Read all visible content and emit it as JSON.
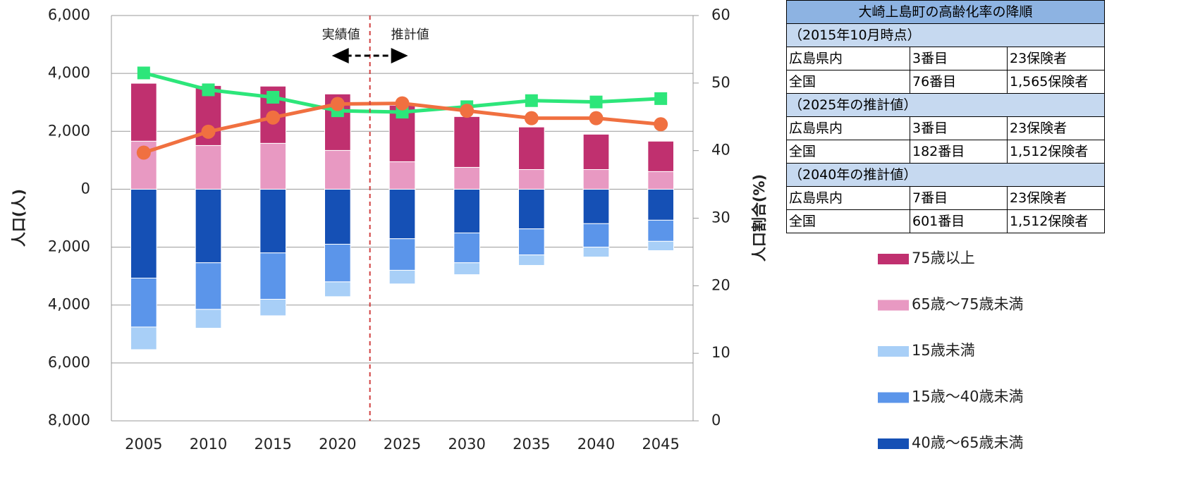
{
  "chart_data": {
    "type": "bar",
    "categories": [
      "2005",
      "2010",
      "2015",
      "2020",
      "2025",
      "2030",
      "2035",
      "2040",
      "2045"
    ],
    "y_label": "人口(人)",
    "y2_label": "人口割合(%)",
    "annotations": [
      "実績値",
      "推計値"
    ],
    "ylim": [
      -8000,
      6000
    ],
    "yticks": [
      {
        "value": -8000,
        "label": "8,000"
      },
      {
        "value": -6000,
        "label": "6,000"
      },
      {
        "value": -4000,
        "label": "4,000"
      },
      {
        "value": -2000,
        "label": "2,000"
      },
      0,
      {
        "value": 2000,
        "label": "2,000"
      },
      {
        "value": 4000,
        "label": "4,000"
      },
      {
        "value": 6000,
        "label": "6,000"
      }
    ],
    "y2lim": [
      0,
      60
    ],
    "y2ticks": [
      0,
      10,
      20,
      30,
      40,
      50,
      60
    ],
    "grid": true,
    "series": [
      {
        "name": "75歳以上",
        "color": "#c0306f",
        "values": [
          2000,
          2070,
          1975,
          1950,
          1950,
          1755,
          1470,
          1220,
          1050
        ]
      },
      {
        "name": "65歳～75歳未満",
        "color": "#e899c2",
        "values": [
          1660,
          1510,
          1585,
          1340,
          950,
          755,
          680,
          680,
          610
        ]
      },
      {
        "name": "15歳未満",
        "color": "#a8cff7",
        "values": [
          -780,
          -650,
          -570,
          -510,
          -470,
          -410,
          -360,
          -340,
          -320
        ]
      },
      {
        "name": "15歳～40歳未満",
        "color": "#5b95ea",
        "values": [
          -1690,
          -1610,
          -1600,
          -1300,
          -1090,
          -1030,
          -900,
          -810,
          -730
        ]
      },
      {
        "name": "40歳～65歳未満",
        "color": "#1550b5",
        "values": [
          -3070,
          -2540,
          -2200,
          -1900,
          -1710,
          -1510,
          -1370,
          -1190,
          -1070
        ]
      },
      {
        "type": "line",
        "axis": "y2",
        "color": "#2de67a",
        "marker": "square",
        "values": [
          51.5,
          49.0,
          47.9,
          45.9,
          45.7,
          46.5,
          47.4,
          47.2,
          47.7
        ]
      },
      {
        "type": "line",
        "axis": "y2",
        "color": "#f07040",
        "marker": "circle",
        "values": [
          39.7,
          42.8,
          44.9,
          46.9,
          47.0,
          45.9,
          44.8,
          44.8,
          43.9
        ]
      }
    ]
  },
  "table": {
    "title": "大崎上島町の高齢化率の降順",
    "sections": [
      {
        "heading": "（2015年10月時点）",
        "rows": [
          [
            "広島県内",
            "3番目",
            "23保険者"
          ],
          [
            "全国",
            "76番目",
            "1,565保険者"
          ]
        ]
      },
      {
        "heading": "（2025年の推計値）",
        "rows": [
          [
            "広島県内",
            "3番目",
            "23保険者"
          ],
          [
            "全国",
            "182番目",
            "1,512保険者"
          ]
        ]
      },
      {
        "heading": "（2040年の推計値）",
        "rows": [
          [
            "広島県内",
            "7番目",
            "23保険者"
          ],
          [
            "全国",
            "601番目",
            "1,512保険者"
          ]
        ]
      }
    ]
  }
}
